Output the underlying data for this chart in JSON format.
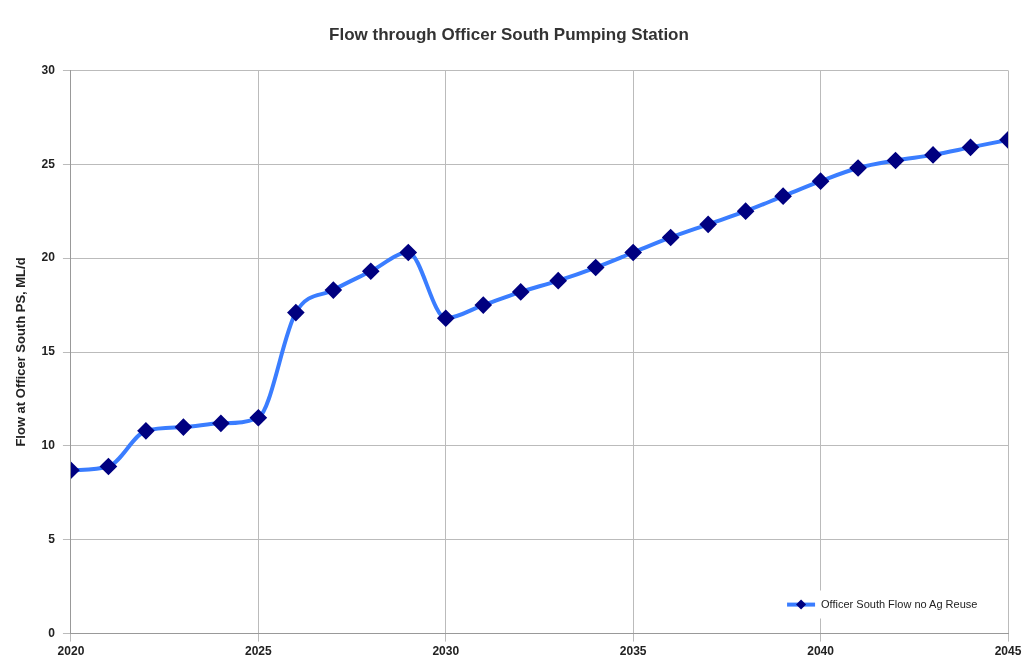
{
  "chart_data": {
    "type": "line",
    "title": "Flow through Officer South Pumping Station",
    "ylabel": "Flow at Officer South PS, ML/d",
    "x": [
      2020,
      2021,
      2022,
      2023,
      2024,
      2025,
      2026,
      2027,
      2028,
      2029,
      2030,
      2031,
      2032,
      2033,
      2034,
      2035,
      2036,
      2037,
      2038,
      2039,
      2040,
      2041,
      2042,
      2043,
      2044,
      2045
    ],
    "series": [
      {
        "name": "Officer South Flow no Ag Reuse",
        "color": "#3a7dff",
        "values": [
          8.7,
          8.9,
          10.8,
          11.0,
          11.2,
          11.5,
          17.1,
          18.3,
          19.3,
          20.3,
          16.8,
          17.5,
          18.2,
          18.8,
          19.5,
          20.3,
          21.1,
          21.8,
          22.5,
          23.3,
          24.1,
          24.8,
          25.2,
          25.5,
          25.9,
          26.3
        ]
      }
    ],
    "xlim": [
      2020,
      2045
    ],
    "xticks": [
      2020,
      2025,
      2030,
      2035,
      2040,
      2045
    ],
    "ylim": [
      0,
      30
    ],
    "yticks": [
      0,
      5,
      10,
      15,
      20,
      25,
      30
    ],
    "grid": true,
    "legend": "bottom right",
    "marker": "diamond",
    "line_style": "solid"
  }
}
